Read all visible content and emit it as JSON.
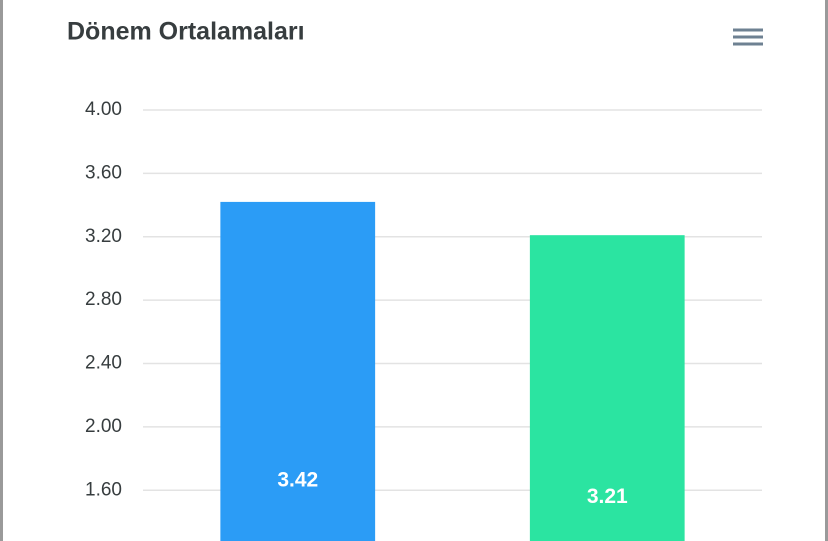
{
  "chart_data": {
    "type": "bar",
    "title": "Dönem Ortalamaları",
    "categories": [
      null,
      null
    ],
    "series": [
      {
        "values": [
          3.42,
          3.21
        ],
        "colors": [
          "#2b9cf6",
          "#2be4a1"
        ]
      }
    ],
    "ylim": [
      1.28,
      4
    ],
    "yticks": [
      {
        "value": 1.6,
        "label": "1.60"
      },
      {
        "value": 2,
        "label": "2.00"
      },
      {
        "value": 2.4,
        "label": "2.40"
      },
      {
        "value": 2.8,
        "label": "2.80"
      },
      {
        "value": 3.2,
        "label": "3.20"
      },
      {
        "value": 3.6,
        "label": "3.60"
      },
      {
        "value": 4,
        "label": "4.00"
      }
    ],
    "grid": true
  }
}
